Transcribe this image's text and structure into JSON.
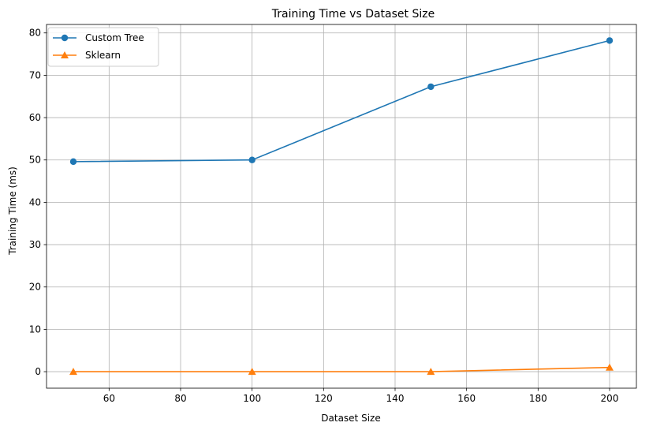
{
  "chart_data": {
    "type": "line",
    "title": "Training Time vs Dataset Size",
    "xlabel": "Dataset Size",
    "ylabel": "Training Time (ms)",
    "x": [
      50,
      100,
      150,
      200
    ],
    "xlim": [
      42.5,
      207.5
    ],
    "ylim": [
      -3.9,
      82.0
    ],
    "xticks": [
      60,
      80,
      100,
      120,
      140,
      160,
      180,
      200
    ],
    "yticks": [
      0,
      10,
      20,
      30,
      40,
      50,
      60,
      70,
      80
    ],
    "grid": true,
    "legend_position": "top-left",
    "series": [
      {
        "name": "Custom Tree",
        "values": [
          49.6,
          50.0,
          67.3,
          78.2
        ],
        "color": "#1f77b4",
        "marker": "circle"
      },
      {
        "name": "Sklearn",
        "values": [
          0.0,
          0.0,
          0.0,
          1.0
        ],
        "color": "#ff7f0e",
        "marker": "triangle"
      }
    ]
  }
}
